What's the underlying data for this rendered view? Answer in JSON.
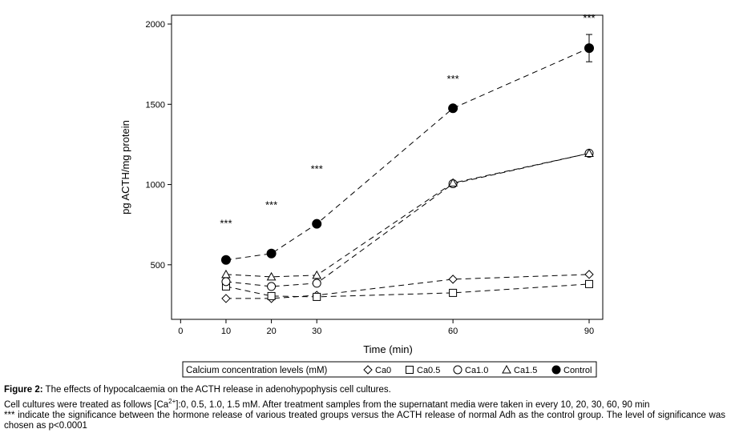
{
  "chart_data": {
    "type": "line",
    "xlabel": "Time (min)",
    "ylabel": "pg ACTH/mg protein",
    "x": [
      10,
      20,
      30,
      60,
      90
    ],
    "xlim": [
      -2,
      93
    ],
    "ylim": [
      160,
      2055
    ],
    "xticks": [
      0,
      10,
      20,
      30,
      60,
      90
    ],
    "yticks": [
      500,
      1000,
      1500,
      2000
    ],
    "grid": false,
    "legend": {
      "title": "Calcium concentration levels (mM)",
      "placement": "bottom"
    },
    "series": [
      {
        "name": "Ca0",
        "marker": "diamond-open",
        "values": [
          290,
          290,
          310,
          410,
          440
        ]
      },
      {
        "name": "Ca0.5",
        "marker": "square-open",
        "values": [
          365,
          305,
          300,
          325,
          380
        ]
      },
      {
        "name": "Ca1.0",
        "marker": "circle-open",
        "values": [
          395,
          365,
          385,
          1005,
          1195
        ]
      },
      {
        "name": "Ca1.5",
        "marker": "triangle-open",
        "values": [
          440,
          425,
          435,
          1010,
          1195
        ]
      },
      {
        "name": "Control",
        "marker": "circle-filled",
        "values": [
          530,
          570,
          755,
          1475,
          1850
        ],
        "error": [
          0,
          0,
          0,
          0,
          85
        ]
      }
    ],
    "significance": {
      "label": "***",
      "x": [
        10,
        20,
        30,
        60,
        90
      ],
      "y": [
        760,
        875,
        1100,
        1660,
        2040
      ]
    }
  },
  "caption": {
    "label": "Figure 2:",
    "title": " The effects of hypocalcaemia on the ACTH release in adenohypophysis cell cultures.",
    "line2_pre": "Cell cultures were treated as follows [Ca",
    "line2_sup": "2+",
    "line2_post": "]:0, 0.5, 1.0, 1.5 mM. After treatment samples from the supernatant media were taken in every 10, 20, 30, 60, 90 min",
    "line3": "*** indicate the significance between the hormone release of various treated groups versus the ACTH release of normal Adh as the control group. The level of significance was chosen as p<0.0001"
  }
}
